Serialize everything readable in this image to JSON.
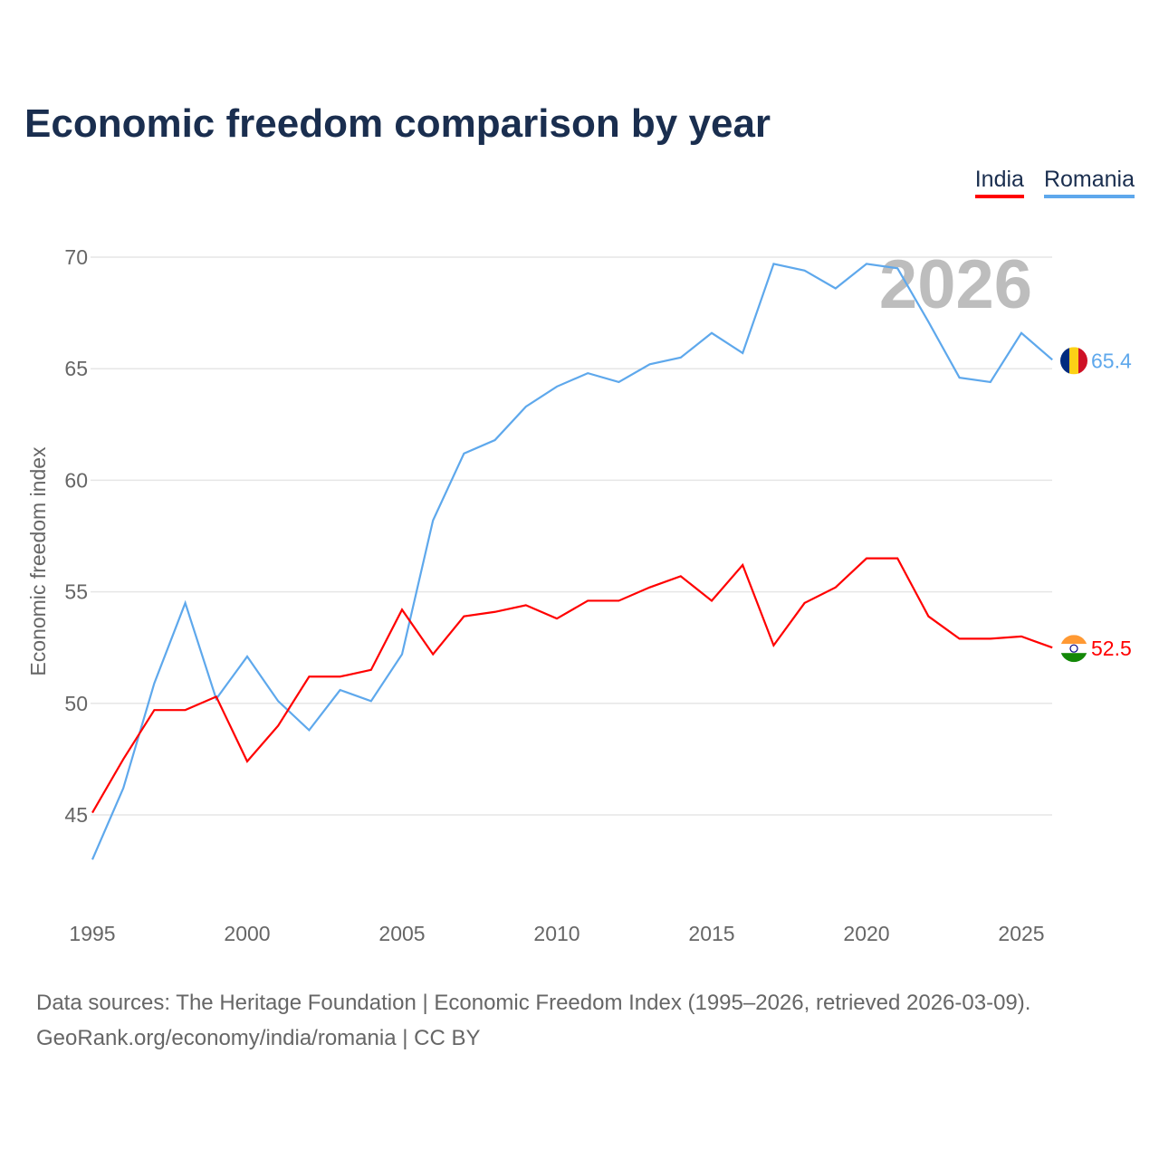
{
  "title": "Economic freedom comparison by year",
  "watermark_year": "2026",
  "source_line1": "Data sources: The Heritage Foundation | Economic Freedom Index (1995–2026, retrieved 2026-03-09).",
  "source_line2": "GeoRank.org/economy/india/romania | CC BY",
  "chart_data": {
    "type": "line",
    "title": "Economic freedom comparison by year",
    "xlabel": "",
    "ylabel": "Economic freedom index",
    "xlim": [
      1995,
      2026
    ],
    "ylim": [
      42,
      71
    ],
    "x_ticks": [
      "1995",
      "2000",
      "2005",
      "2010",
      "2015",
      "2020",
      "2025"
    ],
    "y_ticks": [
      "45",
      "50",
      "55",
      "60",
      "65",
      "70"
    ],
    "grid": true,
    "legend_position": "top-right",
    "x": [
      1995,
      1996,
      1997,
      1998,
      1999,
      2000,
      2001,
      2002,
      2003,
      2004,
      2005,
      2006,
      2007,
      2008,
      2009,
      2010,
      2011,
      2012,
      2013,
      2014,
      2015,
      2016,
      2017,
      2018,
      2019,
      2020,
      2021,
      2022,
      2023,
      2024,
      2025,
      2026
    ],
    "series": [
      {
        "name": "India",
        "color": "#ff0000",
        "end_label": "52.5",
        "values": [
          45.1,
          47.5,
          49.7,
          49.7,
          50.3,
          47.4,
          49.0,
          51.2,
          51.2,
          51.5,
          54.2,
          52.2,
          53.9,
          54.1,
          54.4,
          53.8,
          54.6,
          54.6,
          55.2,
          55.7,
          54.6,
          56.2,
          52.6,
          54.5,
          55.2,
          56.5,
          56.5,
          53.9,
          52.9,
          52.9,
          53.0,
          52.5
        ]
      },
      {
        "name": "Romania",
        "color": "#5ea8ec",
        "end_label": "65.4",
        "values": [
          43.0,
          46.2,
          50.9,
          54.5,
          50.2,
          52.1,
          50.1,
          48.8,
          50.6,
          50.1,
          52.2,
          58.2,
          61.2,
          61.8,
          63.3,
          64.2,
          64.8,
          64.4,
          65.2,
          65.5,
          66.6,
          65.7,
          69.7,
          69.4,
          68.6,
          69.7,
          69.5,
          67.1,
          64.6,
          64.4,
          66.6,
          65.4
        ]
      }
    ]
  }
}
